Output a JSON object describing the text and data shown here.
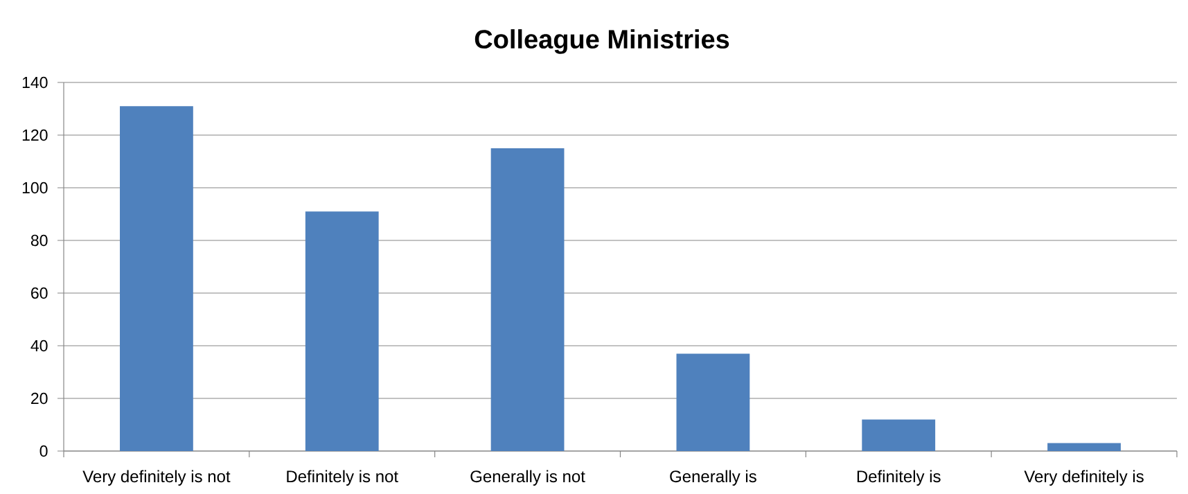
{
  "chart_data": {
    "type": "bar",
    "title": "Colleague Ministries",
    "categories": [
      "Very definitely is not",
      "Definitely is not",
      "Generally is not",
      "Generally is",
      "Definitely is",
      "Very definitely is"
    ],
    "values": [
      131,
      91,
      115,
      37,
      12,
      3
    ],
    "color": "#4f81bd",
    "ylim": [
      0,
      140
    ],
    "yticks": [
      0,
      20,
      40,
      60,
      80,
      100,
      120,
      140
    ],
    "grid": "y"
  }
}
